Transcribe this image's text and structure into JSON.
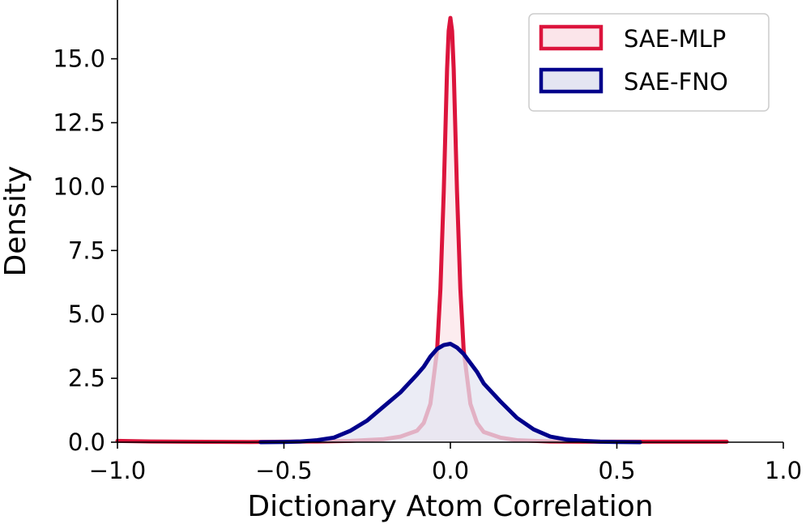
{
  "chart_data": {
    "type": "area",
    "title": "",
    "xlabel": "Dictionary Atom Correlation",
    "ylabel": "Density",
    "xlim": [
      -1.0,
      1.0
    ],
    "ylim": [
      0.0,
      17.3
    ],
    "xticks": [
      -1.0,
      -0.5,
      0.0,
      0.5,
      1.0
    ],
    "xtick_labels": [
      "−1.0",
      "−0.5",
      "0.0",
      "0.5",
      "1.0"
    ],
    "yticks": [
      0.0,
      2.5,
      5.0,
      7.5,
      10.0,
      12.5,
      15.0
    ],
    "ytick_labels": [
      "0.0",
      "2.5",
      "5.0",
      "7.5",
      "10.0",
      "12.5",
      "15.0"
    ],
    "grid": false,
    "legend_position": "top-right",
    "series": [
      {
        "name": "SAE-MLP",
        "color": "#dc143c",
        "fill": "#fbe5ea",
        "x": [
          -1.0,
          -0.9,
          -0.8,
          -0.6,
          -0.4,
          -0.3,
          -0.2,
          -0.15,
          -0.1,
          -0.08,
          -0.06,
          -0.04,
          -0.03,
          -0.02,
          -0.01,
          -0.005,
          0.0,
          0.005,
          0.01,
          0.02,
          0.03,
          0.04,
          0.06,
          0.08,
          0.1,
          0.15,
          0.2,
          0.3,
          0.4,
          0.6,
          0.7,
          0.83
        ],
        "y": [
          0.05,
          0.03,
          0.02,
          0.01,
          0.03,
          0.05,
          0.12,
          0.22,
          0.45,
          0.75,
          1.5,
          3.6,
          6.0,
          9.8,
          14.6,
          16.1,
          16.6,
          16.1,
          14.6,
          9.8,
          6.0,
          3.6,
          1.5,
          0.75,
          0.4,
          0.18,
          0.08,
          0.03,
          0.02,
          0.02,
          0.02,
          0.02
        ]
      },
      {
        "name": "SAE-FNO",
        "color": "#00008b",
        "fill": "#e4e5f2",
        "x": [
          -0.57,
          -0.5,
          -0.45,
          -0.4,
          -0.35,
          -0.3,
          -0.25,
          -0.2,
          -0.15,
          -0.1,
          -0.08,
          -0.06,
          -0.04,
          -0.02,
          0.0,
          0.02,
          0.04,
          0.06,
          0.08,
          0.1,
          0.15,
          0.2,
          0.25,
          0.3,
          0.35,
          0.4,
          0.45,
          0.5,
          0.57
        ],
        "y": [
          0.0,
          0.01,
          0.03,
          0.08,
          0.18,
          0.45,
          0.85,
          1.4,
          1.95,
          2.65,
          2.95,
          3.35,
          3.65,
          3.8,
          3.85,
          3.7,
          3.45,
          3.1,
          2.75,
          2.3,
          1.6,
          0.95,
          0.5,
          0.22,
          0.1,
          0.05,
          0.02,
          0.01,
          0.0
        ]
      }
    ]
  }
}
